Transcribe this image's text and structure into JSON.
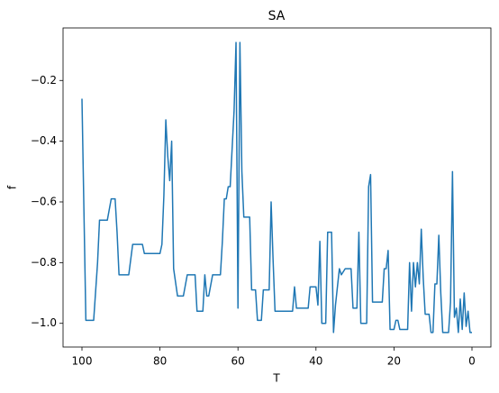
{
  "chart_data": {
    "type": "line",
    "title": "SA",
    "xlabel": "T",
    "ylabel": "f",
    "color": "#1f77b4",
    "x": [
      100,
      99,
      97,
      96,
      95.5,
      93.5,
      92.5,
      91.5,
      91,
      90.5,
      88,
      87,
      84.5,
      84,
      80,
      79.5,
      79,
      78.5,
      78,
      77.5,
      77,
      76.5,
      75.5,
      74,
      73,
      71,
      70.5,
      69,
      68.5,
      68,
      67.5,
      66.5,
      64.5,
      64,
      63.5,
      63,
      62.5,
      62,
      61,
      60.5,
      60,
      59.5,
      59,
      58.5,
      57,
      56.5,
      55.5,
      55,
      54,
      53.5,
      52,
      51.5,
      51,
      50.5,
      46,
      45.5,
      45,
      42,
      41.5,
      40,
      39.5,
      39,
      38.5,
      37.5,
      37,
      36,
      35.5,
      35,
      34,
      33.5,
      32.5,
      31,
      30.5,
      29.5,
      29,
      28.5,
      27,
      26.5,
      26,
      25.5,
      23,
      22.5,
      22,
      21.5,
      21,
      20,
      19.5,
      19,
      18.5,
      16.5,
      16,
      15.5,
      15,
      14.5,
      14,
      13.5,
      13,
      12.5,
      12,
      11,
      10.5,
      10,
      9.5,
      9,
      8.5,
      8,
      7.5,
      6,
      5.5,
      5,
      4.5,
      4,
      3.5,
      3,
      2.5,
      2,
      1.5,
      1,
      0.5,
      0
    ],
    "values": [
      -0.26,
      -0.99,
      -0.99,
      -0.8,
      -0.66,
      -0.66,
      -0.59,
      -0.59,
      -0.7,
      -0.84,
      -0.84,
      -0.74,
      -0.74,
      -0.77,
      -0.77,
      -0.74,
      -0.58,
      -0.33,
      -0.45,
      -0.53,
      -0.4,
      -0.82,
      -0.91,
      -0.91,
      -0.84,
      -0.84,
      -0.96,
      -0.96,
      -0.84,
      -0.91,
      -0.91,
      -0.84,
      -0.84,
      -0.73,
      -0.59,
      -0.59,
      -0.55,
      -0.55,
      -0.3,
      -0.075,
      -0.95,
      -0.075,
      -0.5,
      -0.65,
      -0.65,
      -0.89,
      -0.89,
      -0.99,
      -0.99,
      -0.89,
      -0.89,
      -0.6,
      -0.79,
      -0.96,
      -0.96,
      -0.88,
      -0.95,
      -0.95,
      -0.88,
      -0.88,
      -0.94,
      -0.73,
      -1.0,
      -1.0,
      -0.7,
      -0.7,
      -1.03,
      -0.94,
      -0.82,
      -0.84,
      -0.82,
      -0.82,
      -0.95,
      -0.95,
      -0.7,
      -1.0,
      -1.0,
      -0.55,
      -0.51,
      -0.93,
      -0.93,
      -0.82,
      -0.82,
      -0.76,
      -1.02,
      -1.02,
      -0.99,
      -0.99,
      -1.02,
      -1.02,
      -0.8,
      -0.96,
      -0.8,
      -0.88,
      -0.8,
      -0.87,
      -0.69,
      -0.85,
      -0.97,
      -0.97,
      -1.03,
      -1.03,
      -0.87,
      -0.87,
      -0.71,
      -0.9,
      -1.03,
      -1.03,
      -0.93,
      -0.5,
      -0.98,
      -0.95,
      -1.03,
      -0.92,
      -1.02,
      -0.9,
      -1.01,
      -0.96,
      -1.03,
      -1.03
    ],
    "xlim": [
      104.85,
      -4.85
    ],
    "xticks": [
      100,
      80,
      60,
      40,
      20,
      0
    ],
    "ylim": [
      -1.078,
      -0.027
    ],
    "yticks": [
      {
        "value": -1.0,
        "label": "−1.0"
      },
      {
        "value": -0.8,
        "label": "−0.8"
      },
      {
        "value": -0.6,
        "label": "−0.6"
      },
      {
        "value": -0.4,
        "label": "−0.4"
      },
      {
        "value": -0.2,
        "label": "−0.2"
      }
    ]
  }
}
